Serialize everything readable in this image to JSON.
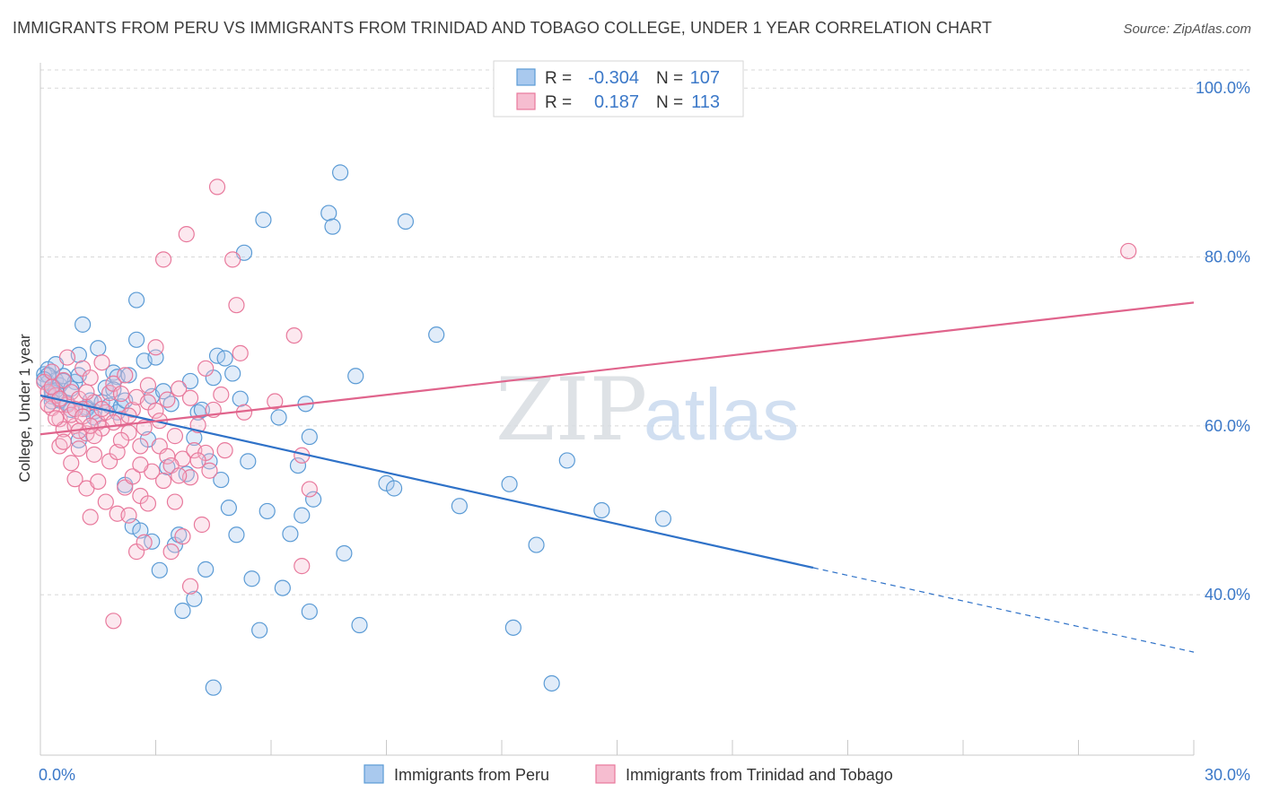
{
  "title": "IMMIGRANTS FROM PERU VS IMMIGRANTS FROM TRINIDAD AND TOBAGO COLLEGE, UNDER 1 YEAR CORRELATION CHART",
  "source": "Source: ZipAtlas.com",
  "watermark": {
    "zip": "ZIP",
    "atlas": "atlas"
  },
  "colors": {
    "peru": "#5b9bd5",
    "peru_fill": "#a9c9ee",
    "peru_line": "#2f72c8",
    "tt": "#e8799c",
    "tt_fill": "#f6bdd0",
    "tt_line": "#e0648c",
    "tick": "#3b78c8",
    "grid": "#d8d8d8"
  },
  "legend": {
    "rows": [
      {
        "r_label": "R =",
        "r_value": "-0.304",
        "n_label": "N =",
        "n_value": "107"
      },
      {
        "r_label": "R =",
        "r_value": "0.187",
        "n_label": "N =",
        "n_value": "113"
      }
    ]
  },
  "chart_data": {
    "type": "scatter",
    "title": "IMMIGRANTS FROM PERU VS IMMIGRANTS FROM TRINIDAD AND TOBAGO COLLEGE, UNDER 1 YEAR CORRELATION CHART",
    "xlabel": "",
    "ylabel": "College, Under 1 year",
    "xlim": [
      0,
      30
    ],
    "ylim": [
      21,
      103
    ],
    "x_tick_labels": [
      "0.0%",
      "30.0%"
    ],
    "y_ticks": [
      40,
      60,
      80,
      100
    ],
    "y_tick_labels": [
      "40.0%",
      "60.0%",
      "80.0%",
      "100.0%"
    ],
    "grid": true,
    "legend_position": "bottom-center",
    "series": [
      {
        "name": "Immigrants from Peru",
        "r": -0.304,
        "n": 107,
        "trend": {
          "x0": 0,
          "y0": 63.6,
          "x1": 20.1,
          "y1": 43.2,
          "dash_to_x": 30,
          "dash_to_y": 33.2
        },
        "points": [
          [
            0.1,
            66.1
          ],
          [
            0.2,
            65.1
          ],
          [
            0.3,
            64.2
          ],
          [
            0.2,
            66.7
          ],
          [
            0.4,
            65.4
          ],
          [
            0.3,
            63.5
          ],
          [
            0.5,
            64.8
          ],
          [
            0.6,
            65.9
          ],
          [
            0.4,
            67.3
          ],
          [
            0.7,
            62.7
          ],
          [
            0.8,
            61.9
          ],
          [
            0.9,
            65.2
          ],
          [
            1.0,
            68.4
          ],
          [
            1.0,
            58.3
          ],
          [
            1.1,
            72.0
          ],
          [
            1.2,
            62.2
          ],
          [
            1.3,
            63.0
          ],
          [
            1.4,
            61.7
          ],
          [
            1.5,
            69.2
          ],
          [
            1.6,
            62.8
          ],
          [
            1.7,
            64.5
          ],
          [
            1.8,
            62.4
          ],
          [
            1.9,
            66.3
          ],
          [
            2.0,
            65.8
          ],
          [
            2.0,
            61.6
          ],
          [
            2.1,
            62.3
          ],
          [
            2.2,
            53.0
          ],
          [
            2.3,
            66.0
          ],
          [
            2.4,
            48.1
          ],
          [
            2.5,
            74.9
          ],
          [
            2.5,
            70.2
          ],
          [
            2.6,
            47.6
          ],
          [
            2.7,
            67.7
          ],
          [
            2.8,
            58.4
          ],
          [
            2.9,
            63.5
          ],
          [
            2.9,
            46.3
          ],
          [
            3.0,
            68.1
          ],
          [
            3.1,
            42.9
          ],
          [
            3.2,
            64.1
          ],
          [
            3.3,
            55.1
          ],
          [
            3.4,
            62.6
          ],
          [
            3.5,
            45.9
          ],
          [
            3.6,
            47.1
          ],
          [
            3.7,
            38.1
          ],
          [
            3.8,
            54.3
          ],
          [
            3.9,
            65.3
          ],
          [
            4.0,
            58.6
          ],
          [
            4.0,
            39.5
          ],
          [
            4.1,
            61.6
          ],
          [
            4.2,
            61.9
          ],
          [
            4.3,
            43.0
          ],
          [
            4.4,
            55.8
          ],
          [
            4.5,
            29.0
          ],
          [
            4.5,
            65.7
          ],
          [
            4.6,
            68.3
          ],
          [
            4.7,
            53.6
          ],
          [
            4.8,
            68.0
          ],
          [
            4.9,
            50.3
          ],
          [
            5.0,
            66.2
          ],
          [
            5.1,
            47.1
          ],
          [
            5.2,
            63.2
          ],
          [
            5.3,
            80.5
          ],
          [
            5.4,
            55.8
          ],
          [
            5.5,
            41.9
          ],
          [
            5.7,
            35.8
          ],
          [
            5.8,
            84.4
          ],
          [
            5.9,
            49.9
          ],
          [
            6.2,
            61.0
          ],
          [
            6.3,
            40.8
          ],
          [
            6.5,
            47.2
          ],
          [
            6.7,
            55.3
          ],
          [
            6.8,
            49.4
          ],
          [
            6.9,
            62.6
          ],
          [
            7.0,
            58.7
          ],
          [
            7.1,
            51.3
          ],
          [
            7.0,
            38.0
          ],
          [
            7.5,
            85.2
          ],
          [
            7.6,
            83.6
          ],
          [
            7.8,
            90.0
          ],
          [
            7.9,
            44.9
          ],
          [
            8.2,
            65.9
          ],
          [
            8.3,
            36.4
          ],
          [
            9.0,
            53.2
          ],
          [
            9.2,
            52.6
          ],
          [
            9.5,
            84.2
          ],
          [
            10.3,
            70.8
          ],
          [
            10.9,
            50.5
          ],
          [
            12.2,
            53.1
          ],
          [
            12.3,
            36.1
          ],
          [
            12.9,
            45.9
          ],
          [
            13.3,
            29.5
          ],
          [
            13.7,
            55.9
          ],
          [
            14.6,
            50.0
          ],
          [
            16.2,
            49.0
          ],
          [
            0.3,
            64.0
          ],
          [
            0.5,
            63.0
          ],
          [
            0.6,
            65.3
          ],
          [
            0.8,
            64.4
          ],
          [
            1.0,
            66.0
          ],
          [
            1.2,
            62.0
          ],
          [
            1.4,
            61.0
          ],
          [
            1.9,
            64.3
          ],
          [
            2.2,
            63.0
          ],
          [
            0.2,
            66.0
          ],
          [
            0.4,
            64.2
          ],
          [
            0.1,
            65.5
          ],
          [
            0.3,
            62.9
          ]
        ]
      },
      {
        "name": "Immigrants from Trinidad and Tobago",
        "r": 0.187,
        "n": 113,
        "trend": {
          "x0": 0,
          "y0": 59.0,
          "x1": 30,
          "y1": 74.6
        },
        "points": [
          [
            0.1,
            65.2
          ],
          [
            0.2,
            64.0
          ],
          [
            0.3,
            66.4
          ],
          [
            0.3,
            62.1
          ],
          [
            0.4,
            63.6
          ],
          [
            0.5,
            60.8
          ],
          [
            0.5,
            57.6
          ],
          [
            0.6,
            65.4
          ],
          [
            0.6,
            59.6
          ],
          [
            0.7,
            68.1
          ],
          [
            0.7,
            62.5
          ],
          [
            0.8,
            55.6
          ],
          [
            0.8,
            64.0
          ],
          [
            0.9,
            60.0
          ],
          [
            0.9,
            53.7
          ],
          [
            1.0,
            63.2
          ],
          [
            1.0,
            57.3
          ],
          [
            1.1,
            62.0
          ],
          [
            1.1,
            66.8
          ],
          [
            1.2,
            52.6
          ],
          [
            1.2,
            59.1
          ],
          [
            1.3,
            65.7
          ],
          [
            1.3,
            49.2
          ],
          [
            1.4,
            56.6
          ],
          [
            1.4,
            62.8
          ],
          [
            1.5,
            60.4
          ],
          [
            1.5,
            53.4
          ],
          [
            1.6,
            67.5
          ],
          [
            1.6,
            59.7
          ],
          [
            1.7,
            61.6
          ],
          [
            1.7,
            51.0
          ],
          [
            1.8,
            63.9
          ],
          [
            1.8,
            55.8
          ],
          [
            1.9,
            36.9
          ],
          [
            1.9,
            65.0
          ],
          [
            2.0,
            49.6
          ],
          [
            2.0,
            56.9
          ],
          [
            2.1,
            60.8
          ],
          [
            2.1,
            63.8
          ],
          [
            2.2,
            52.7
          ],
          [
            2.2,
            66.0
          ],
          [
            2.3,
            59.2
          ],
          [
            2.3,
            49.4
          ],
          [
            2.4,
            54.0
          ],
          [
            2.4,
            61.9
          ],
          [
            2.5,
            45.1
          ],
          [
            2.5,
            63.4
          ],
          [
            2.6,
            57.6
          ],
          [
            2.6,
            51.7
          ],
          [
            2.7,
            59.8
          ],
          [
            2.7,
            46.2
          ],
          [
            2.8,
            62.8
          ],
          [
            2.8,
            50.8
          ],
          [
            2.9,
            54.6
          ],
          [
            3.0,
            69.3
          ],
          [
            3.0,
            61.8
          ],
          [
            3.1,
            57.6
          ],
          [
            3.2,
            79.7
          ],
          [
            3.2,
            53.5
          ],
          [
            3.3,
            56.4
          ],
          [
            3.3,
            63.1
          ],
          [
            3.4,
            45.1
          ],
          [
            3.5,
            58.8
          ],
          [
            3.5,
            51.0
          ],
          [
            3.6,
            64.4
          ],
          [
            3.7,
            56.1
          ],
          [
            3.7,
            46.9
          ],
          [
            3.8,
            82.7
          ],
          [
            3.9,
            63.3
          ],
          [
            3.9,
            53.9
          ],
          [
            4.0,
            57.1
          ],
          [
            4.1,
            60.1
          ],
          [
            4.2,
            48.3
          ],
          [
            4.3,
            66.8
          ],
          [
            4.3,
            56.8
          ],
          [
            4.4,
            54.7
          ],
          [
            4.5,
            61.9
          ],
          [
            4.6,
            88.3
          ],
          [
            4.7,
            63.7
          ],
          [
            4.8,
            57.1
          ],
          [
            5.0,
            79.7
          ],
          [
            5.1,
            74.3
          ],
          [
            5.2,
            68.6
          ],
          [
            5.3,
            61.6
          ],
          [
            6.1,
            62.9
          ],
          [
            6.6,
            70.7
          ],
          [
            6.8,
            56.5
          ],
          [
            7.0,
            52.5
          ],
          [
            6.8,
            43.4
          ],
          [
            0.2,
            62.5
          ],
          [
            0.4,
            60.9
          ],
          [
            0.6,
            58.1
          ],
          [
            0.8,
            61.3
          ],
          [
            1.0,
            59.4
          ],
          [
            1.2,
            64.0
          ],
          [
            1.4,
            58.8
          ],
          [
            1.6,
            62.0
          ],
          [
            1.9,
            60.4
          ],
          [
            2.1,
            58.3
          ],
          [
            2.3,
            61.2
          ],
          [
            2.6,
            55.4
          ],
          [
            2.8,
            64.8
          ],
          [
            3.1,
            60.6
          ],
          [
            3.4,
            55.3
          ],
          [
            3.6,
            54.1
          ],
          [
            3.9,
            41.0
          ],
          [
            4.1,
            55.9
          ],
          [
            28.3,
            80.7
          ],
          [
            0.3,
            64.6
          ],
          [
            0.5,
            63.2
          ],
          [
            0.9,
            62.0
          ],
          [
            1.1,
            61.1
          ],
          [
            1.3,
            60.0
          ]
        ]
      }
    ]
  }
}
